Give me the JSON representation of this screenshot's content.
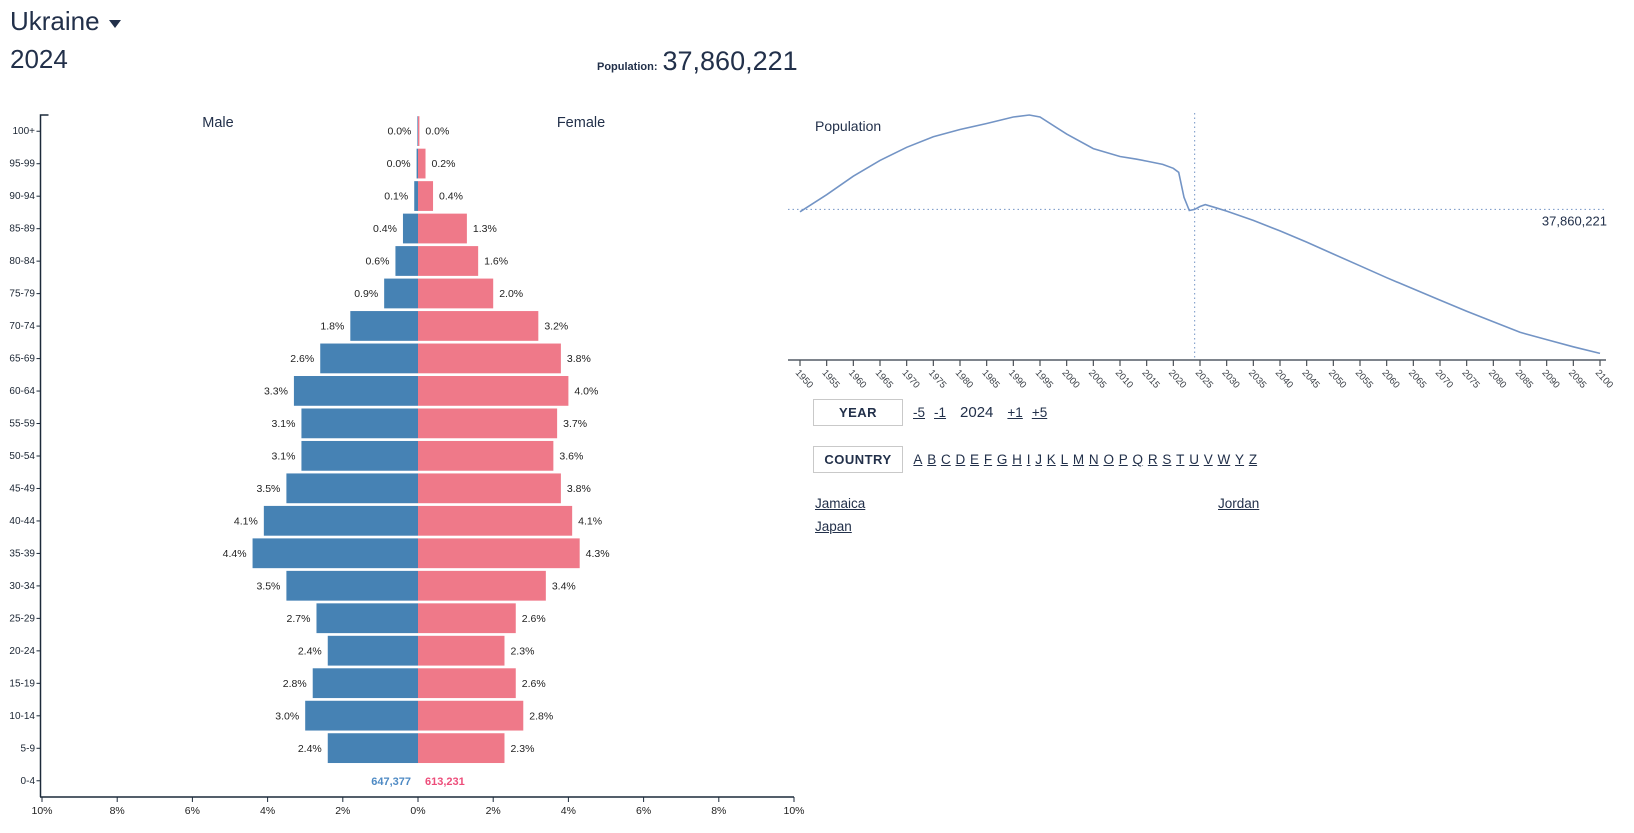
{
  "header": {
    "country": "Ukraine",
    "year": "2024",
    "population_label": "Population:",
    "population_value": "37,860,221"
  },
  "chart_data": [
    {
      "id": "age-pyramid",
      "type": "bar",
      "orientation": "horizontal-pyramid",
      "male_title": "Male",
      "female_title": "Female",
      "x_axis_tick_labels": [
        "10%",
        "8%",
        "6%",
        "4%",
        "2%",
        "0%",
        "2%",
        "4%",
        "6%",
        "8%",
        "10%"
      ],
      "x_max_percent": 10,
      "age_groups": [
        "100+",
        "95-99",
        "90-94",
        "85-89",
        "80-84",
        "75-79",
        "70-74",
        "65-69",
        "60-64",
        "55-59",
        "50-54",
        "45-49",
        "40-44",
        "35-39",
        "30-34",
        "25-29",
        "20-24",
        "15-19",
        "10-14",
        "5-9",
        "0-4"
      ],
      "series": [
        {
          "name": "Male",
          "color": "#4682b4",
          "values_percent": [
            0.0,
            0.0,
            0.1,
            0.4,
            0.6,
            0.9,
            1.8,
            2.6,
            3.3,
            3.1,
            3.1,
            3.5,
            4.1,
            4.4,
            3.5,
            2.7,
            2.4,
            2.8,
            3.0,
            2.4,
            null
          ]
        },
        {
          "name": "Female",
          "color": "#ef7989",
          "values_percent": [
            0.0,
            0.2,
            0.4,
            1.3,
            1.6,
            2.0,
            3.2,
            3.8,
            4.0,
            3.7,
            3.6,
            3.8,
            4.1,
            4.3,
            3.4,
            2.6,
            2.3,
            2.6,
            2.8,
            2.3,
            null
          ]
        }
      ],
      "labels": {
        "male": [
          "0.0%",
          "0.0%",
          "0.1%",
          "0.4%",
          "0.6%",
          "0.9%",
          "1.8%",
          "2.6%",
          "3.3%",
          "3.1%",
          "3.1%",
          "3.5%",
          "4.1%",
          "4.4%",
          "3.5%",
          "2.7%",
          "2.4%",
          "2.8%",
          "3.0%",
          "2.4%",
          ""
        ],
        "female": [
          "0.0%",
          "0.2%",
          "0.4%",
          "1.3%",
          "1.6%",
          "2.0%",
          "3.2%",
          "3.8%",
          "4.0%",
          "3.7%",
          "3.6%",
          "3.8%",
          "4.1%",
          "4.3%",
          "3.4%",
          "2.6%",
          "2.3%",
          "2.6%",
          "2.8%",
          "2.3%",
          ""
        ]
      },
      "hover_counts": {
        "age": "0-4",
        "male": "647,377",
        "female": "613,231"
      },
      "count_colors": {
        "male": "#4e8ac4",
        "female": "#ed4d7a"
      }
    },
    {
      "id": "population-timeline",
      "type": "line",
      "title": "Population",
      "xlim": [
        1950,
        2100
      ],
      "ylim_millions": [
        15.0,
        52.5
      ],
      "grid": false,
      "x_ticks": [
        1950,
        1955,
        1960,
        1965,
        1970,
        1975,
        1980,
        1985,
        1990,
        1995,
        2000,
        2005,
        2010,
        2015,
        2020,
        2025,
        2030,
        2035,
        2040,
        2045,
        2050,
        2055,
        2060,
        2065,
        2070,
        2075,
        2080,
        2085,
        2090,
        2095,
        2100
      ],
      "series": [
        {
          "name": "Population",
          "color": "#7394c5",
          "points_year_millions": [
            [
              1950,
              37.5
            ],
            [
              1955,
              40.1
            ],
            [
              1960,
              42.9
            ],
            [
              1965,
              45.3
            ],
            [
              1970,
              47.3
            ],
            [
              1975,
              48.9
            ],
            [
              1980,
              50.0
            ],
            [
              1985,
              50.9
            ],
            [
              1990,
              51.9
            ],
            [
              1993,
              52.2
            ],
            [
              1995,
              51.9
            ],
            [
              2000,
              49.3
            ],
            [
              2005,
              47.1
            ],
            [
              2010,
              45.9
            ],
            [
              2013,
              45.5
            ],
            [
              2015,
              45.2
            ],
            [
              2018,
              44.7
            ],
            [
              2020,
              44.1
            ],
            [
              2021,
              43.5
            ],
            [
              2022,
              39.7
            ],
            [
              2023,
              37.7
            ],
            [
              2024,
              37.86
            ],
            [
              2025,
              38.3
            ],
            [
              2026,
              38.6
            ],
            [
              2028,
              38.1
            ],
            [
              2030,
              37.6
            ],
            [
              2035,
              36.2
            ],
            [
              2040,
              34.6
            ],
            [
              2045,
              32.9
            ],
            [
              2050,
              31.1
            ],
            [
              2055,
              29.3
            ],
            [
              2060,
              27.5
            ],
            [
              2065,
              25.8
            ],
            [
              2070,
              24.1
            ],
            [
              2075,
              22.4
            ],
            [
              2080,
              20.8
            ],
            [
              2085,
              19.2
            ],
            [
              2090,
              18.1
            ],
            [
              2095,
              17.0
            ],
            [
              2100,
              16.0
            ]
          ]
        }
      ],
      "marker_year": 2024,
      "marker_value_millions": 37.86,
      "marker_label": "37,860,221",
      "legend_position": "none"
    }
  ],
  "controls": {
    "year": {
      "box_label": "YEAR",
      "decrement_links": [
        "-5",
        "-1"
      ],
      "current": "2024",
      "increment_links": [
        "+1",
        "+5"
      ]
    },
    "country": {
      "box_label": "COUNTRY",
      "letter_links": [
        "A",
        "B",
        "C",
        "D",
        "E",
        "F",
        "G",
        "H",
        "I",
        "J",
        "K",
        "L",
        "M",
        "N",
        "O",
        "P",
        "Q",
        "R",
        "S",
        "T",
        "U",
        "V",
        "W",
        "Y",
        "Z"
      ]
    }
  },
  "country_list": {
    "columns": [
      [
        "Jamaica",
        "Japan"
      ],
      [
        "Jordan"
      ]
    ]
  },
  "colors": {
    "text": "#22304a",
    "pyramid_axis": "#1c2a3a",
    "timeline_axis": "#7e848c",
    "timeline_tick": "#4a4f55"
  }
}
